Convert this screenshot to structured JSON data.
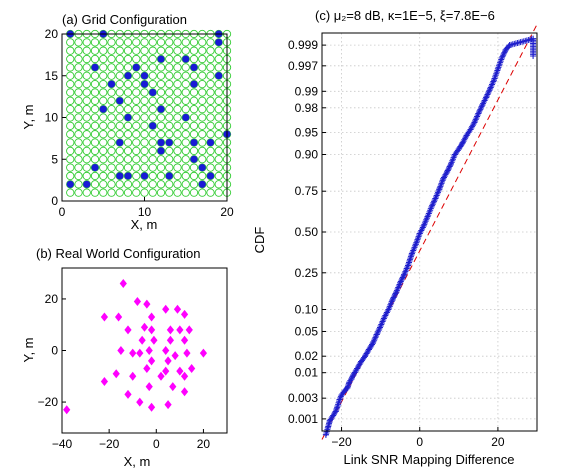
{
  "colors": {
    "grid_circle": "#33cc33",
    "grid_node": "#1a1ad6",
    "real_node": "#ff00ff",
    "qq_points": "#1f1fcc",
    "ref_line": "#dd0000",
    "gridline": "#c8c8c8"
  },
  "chart_data": [
    {
      "id": "a",
      "type": "scatter",
      "title": "(a)   Grid Configuration",
      "xlabel": "X, m",
      "ylabel": "Y, m",
      "xlim": [
        0,
        20
      ],
      "ylim": [
        0,
        20
      ],
      "xticks": [
        0,
        10,
        20
      ],
      "yticks": [
        0,
        5,
        10,
        15,
        20
      ],
      "grid": false,
      "grid_positions": {
        "x_from": 1,
        "x_to": 20,
        "y_from": 1,
        "y_to": 20,
        "step": 1
      },
      "series": [
        {
          "marker": "filled-circle",
          "points": [
            [
              1,
              20
            ],
            [
              5,
              20
            ],
            [
              19,
              20
            ],
            [
              19,
              19
            ],
            [
              12,
              17
            ],
            [
              15,
              17
            ],
            [
              4,
              16
            ],
            [
              9,
              16
            ],
            [
              16,
              16
            ],
            [
              8,
              15
            ],
            [
              10,
              15
            ],
            [
              19,
              15
            ],
            [
              6,
              14
            ],
            [
              10,
              14
            ],
            [
              16,
              14
            ],
            [
              11,
              13
            ],
            [
              7,
              12
            ],
            [
              5,
              11
            ],
            [
              12,
              11
            ],
            [
              8,
              10
            ],
            [
              15,
              10
            ],
            [
              11,
              9
            ],
            [
              20,
              8
            ],
            [
              7,
              7
            ],
            [
              12,
              7
            ],
            [
              13,
              7
            ],
            [
              16,
              7
            ],
            [
              18,
              7
            ],
            [
              12,
              6
            ],
            [
              16,
              5
            ],
            [
              4,
              4
            ],
            [
              17,
              4
            ],
            [
              18,
              3
            ],
            [
              7,
              3
            ],
            [
              8,
              3
            ],
            [
              10,
              3
            ],
            [
              13,
              3
            ],
            [
              1,
              2
            ],
            [
              3,
              2
            ],
            [
              17,
              2
            ]
          ]
        }
      ]
    },
    {
      "id": "b",
      "type": "scatter",
      "title": "(b)   Real World Configuration",
      "xlabel": "X, m",
      "ylabel": "Y, m",
      "xlim": [
        -40,
        30
      ],
      "ylim": [
        -32,
        32
      ],
      "xticks": [
        -40,
        -20,
        0,
        20
      ],
      "yticks": [
        -20,
        0,
        20
      ],
      "grid": false,
      "series": [
        {
          "marker": "filled-diamond",
          "points": [
            [
              -14,
              26
            ],
            [
              -8,
              19
            ],
            [
              -4,
              18
            ],
            [
              -22,
              13
            ],
            [
              -16,
              13
            ],
            [
              -2,
              13
            ],
            [
              4,
              16
            ],
            [
              9,
              16
            ],
            [
              12,
              14
            ],
            [
              -5,
              9
            ],
            [
              -2,
              8
            ],
            [
              -12,
              8
            ],
            [
              6,
              8
            ],
            [
              10,
              8
            ],
            [
              14,
              8
            ],
            [
              -6,
              4
            ],
            [
              -1,
              4
            ],
            [
              6,
              4
            ],
            [
              12,
              4
            ],
            [
              -10,
              -1
            ],
            [
              -15,
              0
            ],
            [
              -7,
              -1
            ],
            [
              -3,
              0
            ],
            [
              4,
              0
            ],
            [
              8,
              -2
            ],
            [
              13,
              -1
            ],
            [
              20,
              -1
            ],
            [
              -2,
              -4
            ],
            [
              5,
              -4
            ],
            [
              -4,
              -7
            ],
            [
              4,
              -8
            ],
            [
              10,
              -8
            ],
            [
              15,
              -7
            ],
            [
              -17,
              -9
            ],
            [
              -10,
              -10
            ],
            [
              2,
              -10
            ],
            [
              12,
              -10
            ],
            [
              -22,
              -12
            ],
            [
              -12,
              -17
            ],
            [
              -3,
              -14
            ],
            [
              7,
              -14
            ],
            [
              12,
              -16
            ],
            [
              -7,
              -20
            ],
            [
              -2,
              -22
            ],
            [
              5,
              -21
            ],
            [
              -38,
              -23
            ]
          ]
        }
      ]
    },
    {
      "id": "c",
      "type": "scatter",
      "title": "(c) μ₂=8 dB,   κ=1E−5,   ξ=7.8E−6",
      "xlabel": "Link SNR Mapping Difference",
      "ylabel": "CDF",
      "xlim": [
        -25,
        30
      ],
      "xticks": [
        -20,
        0,
        20
      ],
      "yscale": "normal-probability",
      "prob_range": [
        0.0005,
        0.9995
      ],
      "yticks": [
        0.001,
        0.003,
        0.01,
        0.02,
        0.05,
        0.1,
        0.25,
        0.5,
        0.75,
        0.9,
        0.95,
        0.98,
        0.99,
        0.997,
        0.999
      ],
      "ytick_labels": [
        "0.001",
        "0.003",
        "0.01",
        "0.02",
        "0.05",
        "0.10",
        "0.25",
        "0.50",
        "0.75",
        "0.90",
        "0.95",
        "0.98",
        "0.99",
        "0.997",
        "0.999"
      ],
      "grid": true,
      "reference_line": {
        "style": "dashed",
        "from": [
          -25,
          0.0003
        ],
        "to": [
          30,
          0.9997
        ]
      },
      "series": [
        {
          "marker": "plus",
          "points": [
            [
              -24,
              0.0004
            ],
            [
              -23.5,
              0.0006
            ],
            [
              -23,
              0.0009
            ],
            [
              -21.5,
              0.0015
            ],
            [
              -21,
              0.002
            ],
            [
              -20.5,
              0.0028
            ],
            [
              -20,
              0.0035
            ],
            [
              -19.5,
              0.004
            ],
            [
              -19,
              0.0045
            ],
            [
              -18.5,
              0.005
            ],
            [
              -18,
              0.0065
            ],
            [
              -17.5,
              0.0075
            ],
            [
              -17,
              0.009
            ],
            [
              -16,
              0.012
            ],
            [
              -15,
              0.016
            ],
            [
              -14,
              0.02
            ],
            [
              -13,
              0.026
            ],
            [
              -12,
              0.033
            ],
            [
              -11,
              0.045
            ],
            [
              -10,
              0.06
            ],
            [
              -9,
              0.08
            ],
            [
              -8,
              0.1
            ],
            [
              -7,
              0.13
            ],
            [
              -6,
              0.16
            ],
            [
              -5,
              0.2
            ],
            [
              -4,
              0.24
            ],
            [
              -3,
              0.29
            ],
            [
              -2,
              0.36
            ],
            [
              -1,
              0.42
            ],
            [
              0,
              0.49
            ],
            [
              1,
              0.54
            ],
            [
              2,
              0.6
            ],
            [
              3,
              0.66
            ],
            [
              4,
              0.71
            ],
            [
              5,
              0.76
            ],
            [
              6,
              0.81
            ],
            [
              7,
              0.84
            ],
            [
              8,
              0.87
            ],
            [
              9,
              0.9
            ],
            [
              10,
              0.915
            ],
            [
              11,
              0.93
            ],
            [
              12,
              0.945
            ],
            [
              13,
              0.955
            ],
            [
              14,
              0.965
            ],
            [
              15,
              0.975
            ],
            [
              16,
              0.982
            ],
            [
              17,
              0.987
            ],
            [
              18,
              0.991
            ],
            [
              19,
              0.994
            ],
            [
              20,
              0.9965
            ],
            [
              21,
              0.998
            ],
            [
              22,
              0.9987
            ],
            [
              23,
              0.999
            ],
            [
              29,
              0.9993
            ],
            [
              29,
              0.9982
            ]
          ]
        }
      ]
    }
  ]
}
